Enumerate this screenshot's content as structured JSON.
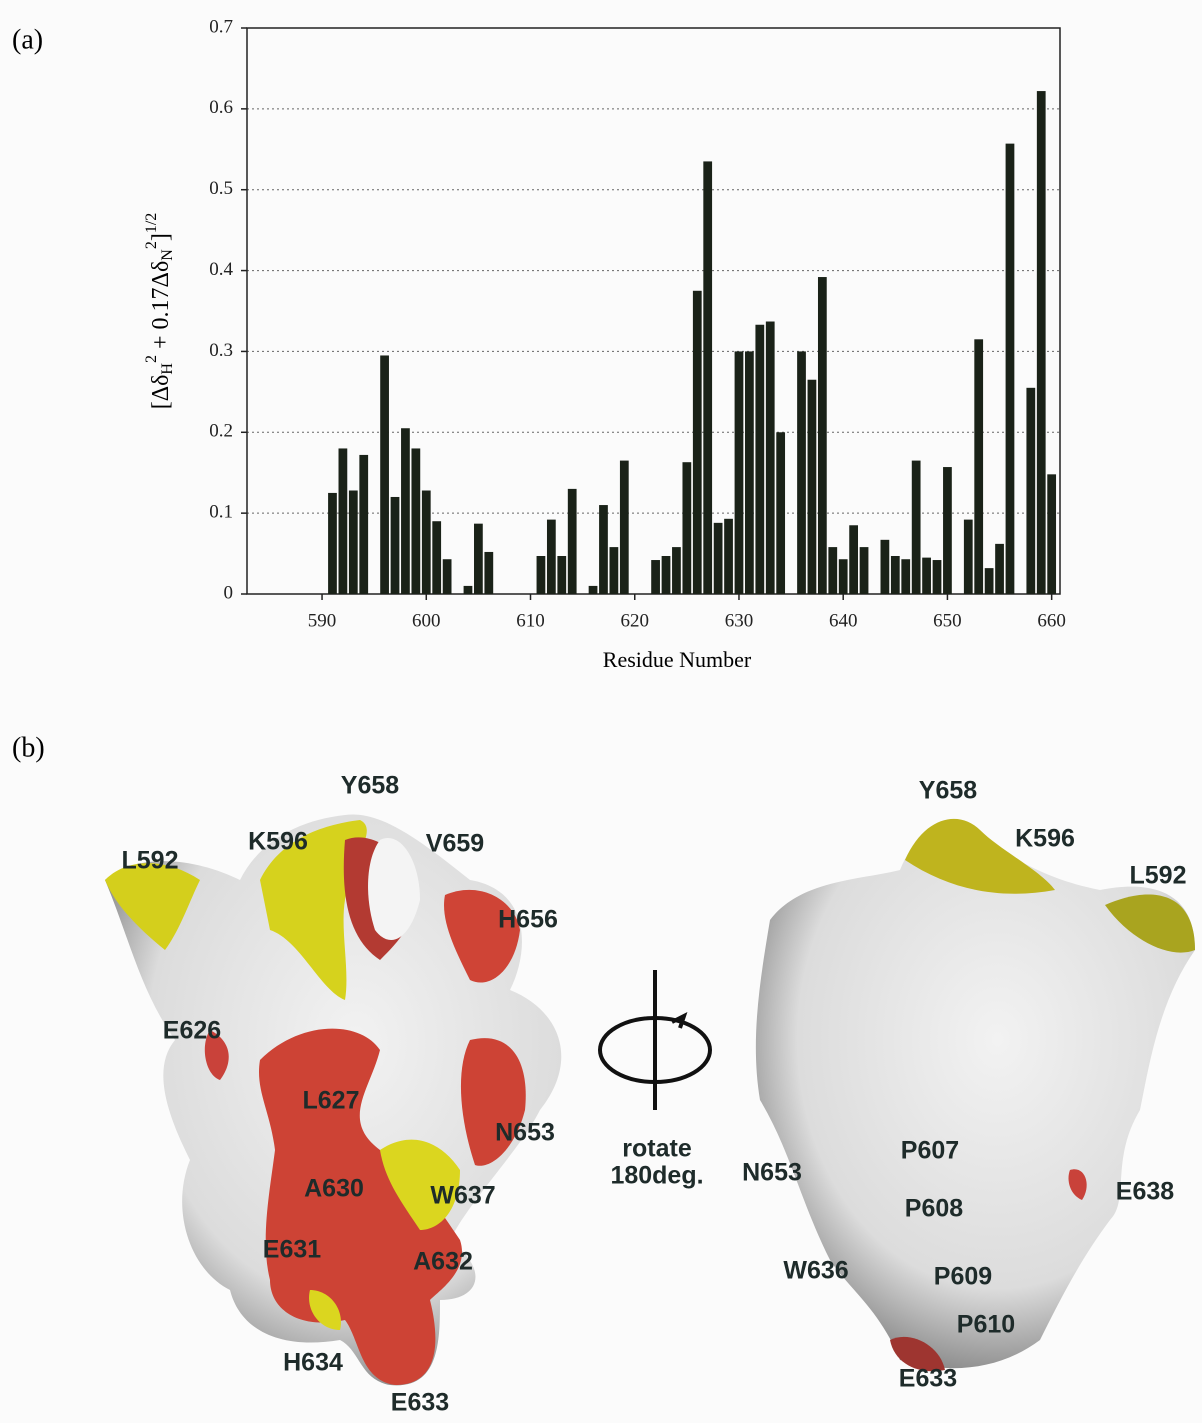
{
  "panel_a_label": "(a)",
  "chart_data": {
    "type": "bar",
    "xlabel": "Residue Number",
    "ylabel_parts": [
      "[Δδ",
      "H",
      "2",
      " + 0.17Δδ",
      "N",
      "2",
      "]",
      "1/2"
    ],
    "x": [
      591,
      592,
      593,
      594,
      596,
      597,
      598,
      599,
      600,
      601,
      602,
      604,
      605,
      606,
      611,
      612,
      613,
      614,
      616,
      617,
      618,
      619,
      622,
      623,
      624,
      625,
      626,
      627,
      628,
      629,
      630,
      631,
      632,
      633,
      634,
      636,
      637,
      638,
      639,
      640,
      641,
      642,
      644,
      645,
      646,
      647,
      648,
      649,
      650,
      652,
      653,
      654,
      655,
      656,
      658,
      659,
      660
    ],
    "values": [
      0.125,
      0.18,
      0.128,
      0.172,
      0.295,
      0.12,
      0.205,
      0.18,
      0.128,
      0.09,
      0.043,
      0.01,
      0.087,
      0.052,
      0.047,
      0.092,
      0.047,
      0.13,
      0.01,
      0.11,
      0.058,
      0.165,
      0.042,
      0.047,
      0.058,
      0.163,
      0.375,
      0.535,
      0.088,
      0.093,
      0.3,
      0.3,
      0.333,
      0.337,
      0.2,
      0.3,
      0.265,
      0.392,
      0.058,
      0.043,
      0.085,
      0.058,
      0.067,
      0.047,
      0.043,
      0.165,
      0.045,
      0.042,
      0.157,
      0.092,
      0.315,
      0.032,
      0.062,
      0.557,
      0.255,
      0.622,
      0.148
    ],
    "color": "#1a2218",
    "xlim": [
      582.8,
      660.8
    ],
    "ylim": [
      0,
      0.7
    ],
    "xticks": [
      590,
      600,
      610,
      620,
      630,
      640,
      650,
      660
    ],
    "yticks": [
      0,
      0.1,
      0.2,
      0.3,
      0.4,
      0.5,
      0.6,
      0.7
    ],
    "grid": true
  },
  "panel_b": {
    "label": "(b)",
    "rotate": "rotate",
    "rotate_angle": "180deg.",
    "left_labels": [
      "Y658",
      "K596",
      "V659",
      "L592",
      "H656",
      "E626",
      "L627",
      "N653",
      "A630",
      "W637",
      "E631",
      "A632",
      "H634",
      "E633"
    ],
    "right_labels": [
      "Y658",
      "K596",
      "L592",
      "P607",
      "N653",
      "E638",
      "P608",
      "W636",
      "P609",
      "P610",
      "E633"
    ]
  }
}
